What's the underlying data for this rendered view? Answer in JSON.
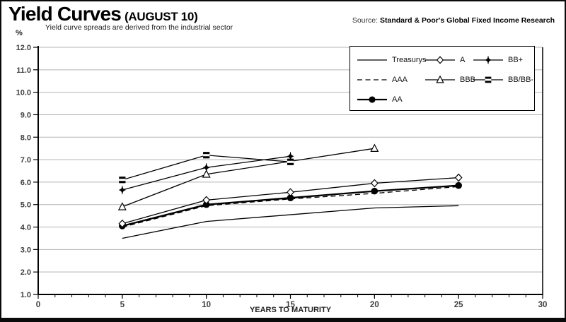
{
  "header": {
    "title": "Yield Curves",
    "title_suffix": "(AUGUST 10)",
    "subtitle": "Yield curve spreads are derived from the industrial sector",
    "source_label": "Source:",
    "source_text": "Standard & Poor's Global Fixed Income Research",
    "y_unit_label": "%"
  },
  "chart_data": {
    "type": "line",
    "title": "Yield Curves (AUGUST 10)",
    "xlabel": "YEARS TO MATURITY",
    "ylabel": "%",
    "xlim": [
      0,
      30
    ],
    "ylim": [
      1.0,
      12.0
    ],
    "x_major_ticks": [
      0,
      5,
      10,
      15,
      20,
      25,
      30
    ],
    "x_minor_tick_step": 1,
    "y_tick_labels": [
      "12.0",
      "11.0",
      "10.0",
      "9.0",
      "8.0",
      "7.0",
      "6.0",
      "5.0",
      "4.0",
      "3.0",
      "2.0",
      "1.0"
    ],
    "grid": "horizontal-gray",
    "legend_position": "top-right-inside",
    "legend_order": [
      "Treasurys",
      "A",
      "BB+",
      "AAA",
      "BBB",
      "BB/BB-",
      "AA"
    ],
    "series": [
      {
        "name": "Treasurys",
        "line": "solid",
        "marker": "none",
        "points": [
          [
            5,
            3.5
          ],
          [
            10,
            4.25
          ],
          [
            15,
            4.55
          ],
          [
            20,
            4.85
          ],
          [
            25,
            4.95
          ]
        ]
      },
      {
        "name": "AAA",
        "line": "dashed",
        "marker": "none",
        "points": [
          [
            5,
            4.0
          ],
          [
            10,
            4.95
          ],
          [
            15,
            5.25
          ],
          [
            20,
            5.5
          ],
          [
            25,
            5.8
          ]
        ]
      },
      {
        "name": "AA",
        "line": "solid-thick",
        "marker": "filled-circle",
        "points": [
          [
            5,
            4.05
          ],
          [
            10,
            5.0
          ],
          [
            15,
            5.3
          ],
          [
            20,
            5.6
          ],
          [
            25,
            5.85
          ]
        ]
      },
      {
        "name": "A",
        "line": "solid",
        "marker": "open-diamond",
        "points": [
          [
            5,
            4.15
          ],
          [
            10,
            5.2
          ],
          [
            15,
            5.55
          ],
          [
            20,
            5.95
          ],
          [
            25,
            6.2
          ]
        ]
      },
      {
        "name": "BBB",
        "line": "solid",
        "marker": "open-triangle",
        "points": [
          [
            5,
            4.9
          ],
          [
            10,
            6.35
          ],
          [
            20,
            7.5
          ]
        ]
      },
      {
        "name": "BB+",
        "line": "solid",
        "marker": "star",
        "points": [
          [
            5,
            5.65
          ],
          [
            10,
            6.65
          ],
          [
            15,
            7.15
          ]
        ]
      },
      {
        "name": "BB/BB-",
        "line": "solid",
        "marker": "striped-square",
        "points": [
          [
            5,
            6.1
          ],
          [
            10,
            7.2
          ],
          [
            15,
            6.9
          ]
        ]
      }
    ],
    "colors": {
      "line": "#000000",
      "grid": "#b3b3b3",
      "tick_label": "#3f3f3f",
      "background": "#ffffff"
    }
  }
}
